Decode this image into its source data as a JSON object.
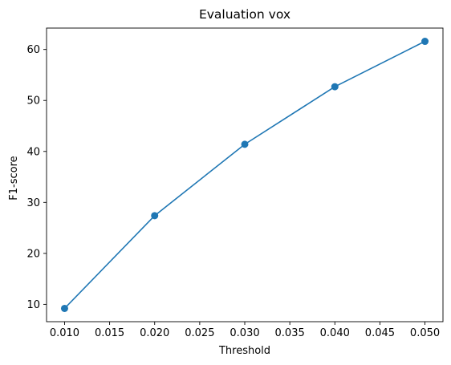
{
  "chart_data": {
    "type": "line",
    "title": "Evaluation vox",
    "xlabel": "Threshold",
    "ylabel": "F1-score",
    "x": [
      0.01,
      0.02,
      0.03,
      0.04,
      0.05
    ],
    "series": [
      {
        "values": [
          9.2,
          27.4,
          41.4,
          52.7,
          61.6
        ],
        "color": "#1f77b4",
        "marker": "circle"
      }
    ],
    "xlim": [
      0.008,
      0.052
    ],
    "ylim": [
      6.6,
      64.2
    ],
    "xticks": [
      0.01,
      0.015,
      0.02,
      0.025,
      0.03,
      0.035,
      0.04,
      0.045,
      0.05
    ],
    "xtick_labels": [
      "0.010",
      "0.015",
      "0.020",
      "0.025",
      "0.030",
      "0.035",
      "0.040",
      "0.045",
      "0.050"
    ],
    "yticks": [
      10,
      20,
      30,
      40,
      50,
      60
    ],
    "ytick_labels": [
      "10",
      "20",
      "30",
      "40",
      "50",
      "60"
    ],
    "grid": false,
    "legend": false
  }
}
